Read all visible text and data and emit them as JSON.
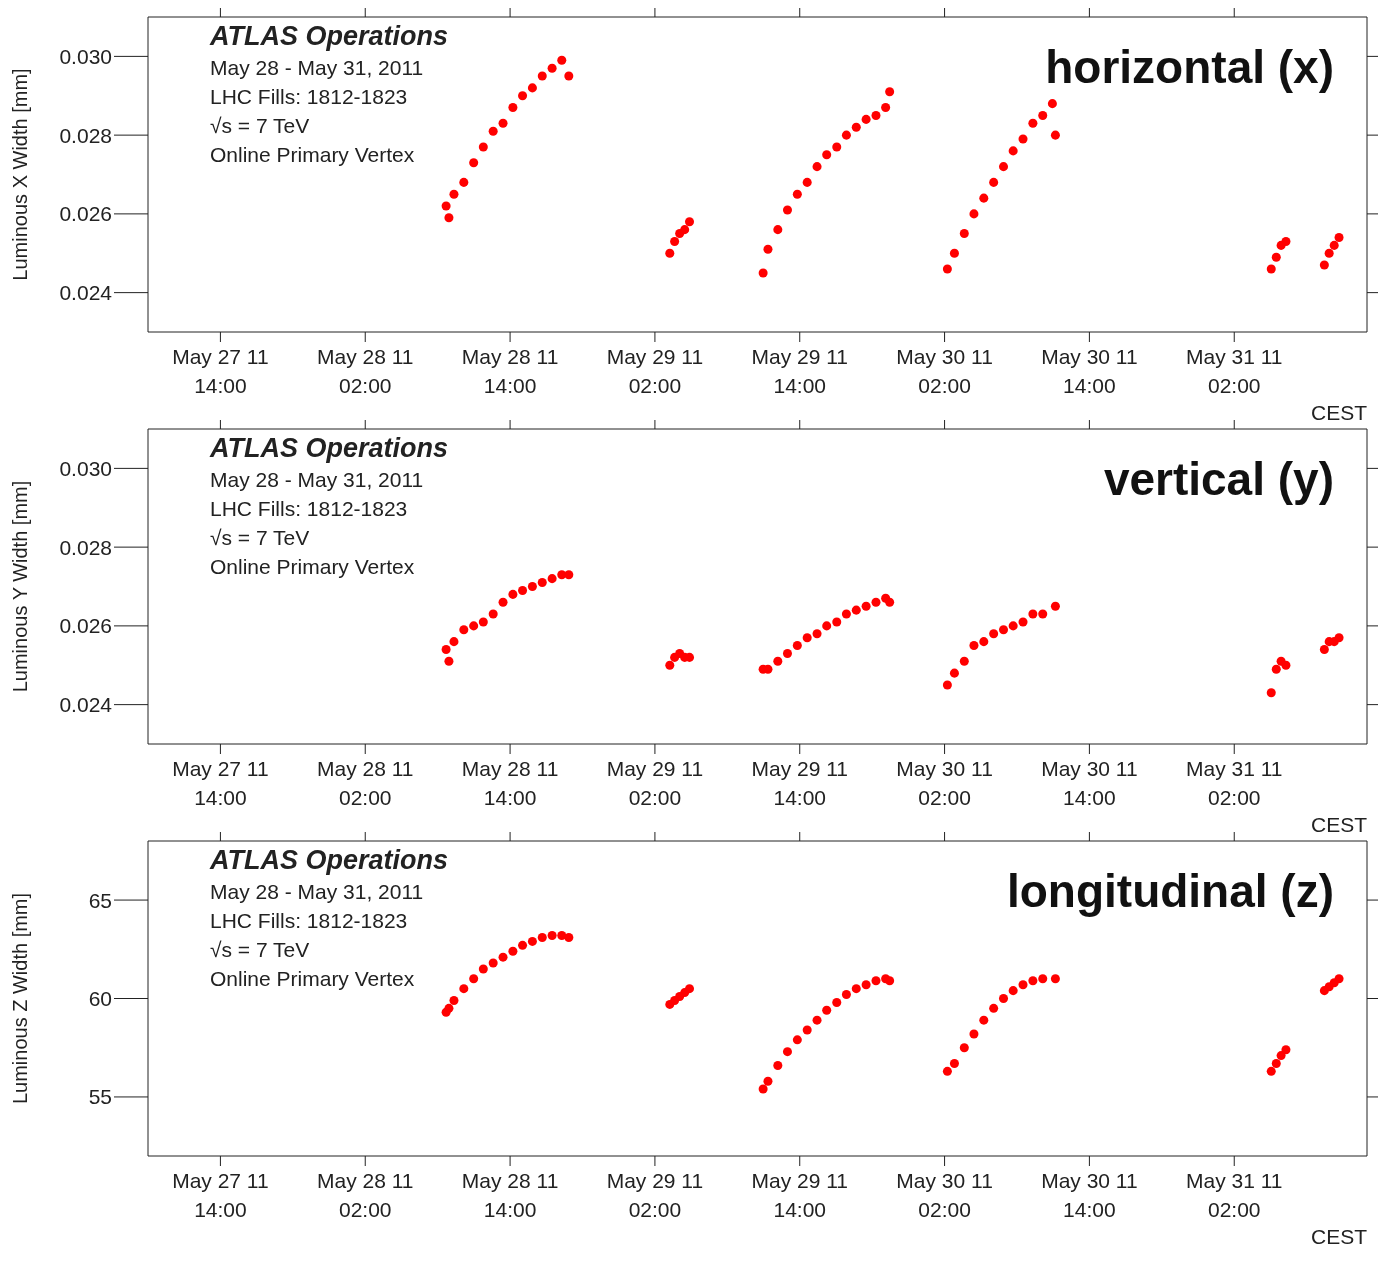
{
  "chart_data": [
    {
      "type": "scatter",
      "ylabel": "Luminous X Width [mm]",
      "xlabel": "CEST",
      "marker": "circle",
      "grid": false,
      "legend": false,
      "annotations": [
        "ATLAS Operations",
        "May 28 - May 31, 2011",
        "LHC Fills: 1812-1823",
        "√s = 7 TeV",
        "Online Primary Vertex",
        "horizontal (x)"
      ],
      "xlim": [
        "2011-05-27T08:00",
        "2011-05-31T13:00"
      ],
      "xticks": [
        {
          "value": "2011-05-27T14:00",
          "label": "May 27 11\n14:00"
        },
        {
          "value": "2011-05-28T02:00",
          "label": "May 28 11\n02:00"
        },
        {
          "value": "2011-05-28T14:00",
          "label": "May 28 11\n14:00"
        },
        {
          "value": "2011-05-29T02:00",
          "label": "May 29 11\n02:00"
        },
        {
          "value": "2011-05-29T14:00",
          "label": "May 29 11\n14:00"
        },
        {
          "value": "2011-05-30T02:00",
          "label": "May 30 11\n02:00"
        },
        {
          "value": "2011-05-30T14:00",
          "label": "May 30 11\n14:00"
        },
        {
          "value": "2011-05-31T02:00",
          "label": "May 31 11\n02:00"
        }
      ],
      "ylim": [
        0.023,
        0.031
      ],
      "yticks": [
        {
          "value": 0.024,
          "label": "0.024"
        },
        {
          "value": 0.026,
          "label": "0.026"
        },
        {
          "value": 0.028,
          "label": "0.028"
        },
        {
          "value": 0.03,
          "label": "0.030"
        }
      ],
      "x": [
        "2011-05-28T08:42",
        "2011-05-28T08:56",
        "2011-05-28T09:21",
        "2011-05-28T10:10",
        "2011-05-28T10:59",
        "2011-05-28T11:47",
        "2011-05-28T12:36",
        "2011-05-28T13:25",
        "2011-05-28T14:14",
        "2011-05-28T15:02",
        "2011-05-28T15:51",
        "2011-05-28T16:40",
        "2011-05-28T17:29",
        "2011-05-28T18:17",
        "2011-05-28T18:52",
        "2011-05-29T03:14",
        "2011-05-29T03:38",
        "2011-05-29T04:03",
        "2011-05-29T04:28",
        "2011-05-29T04:52",
        "2011-05-29T10:58",
        "2011-05-29T11:22",
        "2011-05-29T12:11",
        "2011-05-29T12:59",
        "2011-05-29T13:48",
        "2011-05-29T14:37",
        "2011-05-29T15:26",
        "2011-05-29T16:14",
        "2011-05-29T17:04",
        "2011-05-29T17:52",
        "2011-05-29T18:41",
        "2011-05-29T19:30",
        "2011-05-29T20:19",
        "2011-05-29T21:07",
        "2011-05-29T21:27",
        "2011-05-30T02:14",
        "2011-05-30T02:49",
        "2011-05-30T03:38",
        "2011-05-30T04:26",
        "2011-05-30T05:15",
        "2011-05-30T06:04",
        "2011-05-30T06:53",
        "2011-05-30T07:41",
        "2011-05-30T08:30",
        "2011-05-30T09:19",
        "2011-05-30T10:08",
        "2011-05-30T10:56",
        "2011-05-30T11:11",
        "2011-05-31T05:04",
        "2011-05-31T05:29",
        "2011-05-31T05:53",
        "2011-05-31T06:17",
        "2011-05-31T09:28",
        "2011-05-31T09:52",
        "2011-05-31T10:17",
        "2011-05-31T10:41"
      ],
      "series": [
        {
          "color": "#ff0000",
          "values": [
            0.0262,
            0.0259,
            0.0265,
            0.0268,
            0.0273,
            0.0277,
            0.0281,
            0.0283,
            0.0287,
            0.029,
            0.0292,
            0.0295,
            0.0297,
            0.0299,
            0.0295,
            0.025,
            0.0253,
            0.0255,
            0.0256,
            0.0258,
            0.0245,
            0.0251,
            0.0256,
            0.0261,
            0.0265,
            0.0268,
            0.0272,
            0.0275,
            0.0277,
            0.028,
            0.0282,
            0.0284,
            0.0285,
            0.0287,
            0.0291,
            0.0246,
            0.025,
            0.0255,
            0.026,
            0.0264,
            0.0268,
            0.0272,
            0.0276,
            0.0279,
            0.0283,
            0.0285,
            0.0288,
            0.028,
            0.0246,
            0.0249,
            0.0252,
            0.0253,
            0.0247,
            0.025,
            0.0252,
            0.0254
          ]
        }
      ]
    },
    {
      "type": "scatter",
      "ylabel": "Luminous Y Width [mm]",
      "xlabel": "CEST",
      "marker": "circle",
      "grid": false,
      "legend": false,
      "annotations": [
        "ATLAS Operations",
        "May 28 - May 31, 2011",
        "LHC Fills: 1812-1823",
        "√s = 7 TeV",
        "Online Primary Vertex",
        "vertical (y)"
      ],
      "xlim": [
        "2011-05-27T08:00",
        "2011-05-31T13:00"
      ],
      "xticks": [
        {
          "value": "2011-05-27T14:00",
          "label": "May 27 11\n14:00"
        },
        {
          "value": "2011-05-28T02:00",
          "label": "May 28 11\n02:00"
        },
        {
          "value": "2011-05-28T14:00",
          "label": "May 28 11\n14:00"
        },
        {
          "value": "2011-05-29T02:00",
          "label": "May 29 11\n02:00"
        },
        {
          "value": "2011-05-29T14:00",
          "label": "May 29 11\n14:00"
        },
        {
          "value": "2011-05-30T02:00",
          "label": "May 30 11\n02:00"
        },
        {
          "value": "2011-05-30T14:00",
          "label": "May 30 11\n14:00"
        },
        {
          "value": "2011-05-31T02:00",
          "label": "May 31 11\n02:00"
        }
      ],
      "ylim": [
        0.023,
        0.031
      ],
      "yticks": [
        {
          "value": 0.024,
          "label": "0.024"
        },
        {
          "value": 0.026,
          "label": "0.026"
        },
        {
          "value": 0.028,
          "label": "0.028"
        },
        {
          "value": 0.03,
          "label": "0.030"
        }
      ],
      "x": [
        "2011-05-28T08:42",
        "2011-05-28T08:56",
        "2011-05-28T09:21",
        "2011-05-28T10:10",
        "2011-05-28T10:59",
        "2011-05-28T11:47",
        "2011-05-28T12:36",
        "2011-05-28T13:25",
        "2011-05-28T14:14",
        "2011-05-28T15:02",
        "2011-05-28T15:51",
        "2011-05-28T16:40",
        "2011-05-28T17:29",
        "2011-05-28T18:17",
        "2011-05-28T18:52",
        "2011-05-29T03:14",
        "2011-05-29T03:38",
        "2011-05-29T04:03",
        "2011-05-29T04:28",
        "2011-05-29T04:52",
        "2011-05-29T10:58",
        "2011-05-29T11:22",
        "2011-05-29T12:11",
        "2011-05-29T12:59",
        "2011-05-29T13:48",
        "2011-05-29T14:37",
        "2011-05-29T15:26",
        "2011-05-29T16:14",
        "2011-05-29T17:04",
        "2011-05-29T17:52",
        "2011-05-29T18:41",
        "2011-05-29T19:30",
        "2011-05-29T20:19",
        "2011-05-29T21:07",
        "2011-05-29T21:27",
        "2011-05-30T02:14",
        "2011-05-30T02:49",
        "2011-05-30T03:38",
        "2011-05-30T04:26",
        "2011-05-30T05:15",
        "2011-05-30T06:04",
        "2011-05-30T06:53",
        "2011-05-30T07:41",
        "2011-05-30T08:30",
        "2011-05-30T09:19",
        "2011-05-30T10:08",
        "2011-05-30T10:56",
        "2011-05-30T11:11",
        "2011-05-31T05:04",
        "2011-05-31T05:29",
        "2011-05-31T05:53",
        "2011-05-31T06:17",
        "2011-05-31T09:28",
        "2011-05-31T09:52",
        "2011-05-31T10:17",
        "2011-05-31T10:41"
      ],
      "series": [
        {
          "color": "#ff0000",
          "values": [
            0.0254,
            0.0251,
            0.0256,
            0.0259,
            0.026,
            0.0261,
            0.0263,
            0.0266,
            0.0268,
            0.0269,
            0.027,
            0.0271,
            0.0272,
            0.0273,
            0.0273,
            0.025,
            0.0252,
            0.0253,
            0.0252,
            0.0252,
            0.0249,
            0.0249,
            0.0251,
            0.0253,
            0.0255,
            0.0257,
            0.0258,
            0.026,
            0.0261,
            0.0263,
            0.0264,
            0.0265,
            0.0266,
            0.0267,
            0.0266,
            0.0245,
            0.0248,
            0.0251,
            0.0255,
            0.0256,
            0.0258,
            0.0259,
            0.026,
            0.0261,
            0.0263,
            0.0263,
            null,
            0.0265,
            0.0243,
            0.0249,
            0.0251,
            0.025,
            0.0254,
            0.0256,
            0.0256,
            0.0257
          ]
        }
      ]
    },
    {
      "type": "scatter",
      "ylabel": "Luminous Z Width [mm]",
      "xlabel": "CEST",
      "marker": "circle",
      "grid": false,
      "legend": false,
      "annotations": [
        "ATLAS Operations",
        "May 28 - May 31, 2011",
        "LHC Fills: 1812-1823",
        "√s = 7 TeV",
        "Online Primary Vertex",
        "longitudinal (z)"
      ],
      "xlim": [
        "2011-05-27T08:00",
        "2011-05-31T13:00"
      ],
      "xticks": [
        {
          "value": "2011-05-27T14:00",
          "label": "May 27 11\n14:00"
        },
        {
          "value": "2011-05-28T02:00",
          "label": "May 28 11\n02:00"
        },
        {
          "value": "2011-05-28T14:00",
          "label": "May 28 11\n14:00"
        },
        {
          "value": "2011-05-29T02:00",
          "label": "May 29 11\n02:00"
        },
        {
          "value": "2011-05-29T14:00",
          "label": "May 29 11\n14:00"
        },
        {
          "value": "2011-05-30T02:00",
          "label": "May 30 11\n02:00"
        },
        {
          "value": "2011-05-30T14:00",
          "label": "May 30 11\n14:00"
        },
        {
          "value": "2011-05-31T02:00",
          "label": "May 31 11\n02:00"
        }
      ],
      "ylim": [
        52,
        68
      ],
      "yticks": [
        55,
        60,
        65
      ],
      "x": [
        "2011-05-28T08:42",
        "2011-05-28T08:56",
        "2011-05-28T09:21",
        "2011-05-28T10:10",
        "2011-05-28T10:59",
        "2011-05-28T11:47",
        "2011-05-28T12:36",
        "2011-05-28T13:25",
        "2011-05-28T14:14",
        "2011-05-28T15:02",
        "2011-05-28T15:51",
        "2011-05-28T16:40",
        "2011-05-28T17:29",
        "2011-05-28T18:17",
        "2011-05-28T18:52",
        "2011-05-29T03:14",
        "2011-05-29T03:38",
        "2011-05-29T04:03",
        "2011-05-29T04:28",
        "2011-05-29T04:52",
        "2011-05-29T10:58",
        "2011-05-29T11:22",
        "2011-05-29T12:11",
        "2011-05-29T12:59",
        "2011-05-29T13:48",
        "2011-05-29T14:37",
        "2011-05-29T15:26",
        "2011-05-29T16:14",
        "2011-05-29T17:04",
        "2011-05-29T17:52",
        "2011-05-29T18:41",
        "2011-05-29T19:30",
        "2011-05-29T20:19",
        "2011-05-29T21:07",
        "2011-05-29T21:27",
        "2011-05-30T02:14",
        "2011-05-30T02:49",
        "2011-05-30T03:38",
        "2011-05-30T04:26",
        "2011-05-30T05:15",
        "2011-05-30T06:04",
        "2011-05-30T06:53",
        "2011-05-30T07:41",
        "2011-05-30T08:30",
        "2011-05-30T09:19",
        "2011-05-30T10:08",
        "2011-05-30T10:56",
        "2011-05-30T11:11",
        "2011-05-31T05:04",
        "2011-05-31T05:29",
        "2011-05-31T05:53",
        "2011-05-31T06:17",
        "2011-05-31T09:28",
        "2011-05-31T09:52",
        "2011-05-31T10:17",
        "2011-05-31T10:41"
      ],
      "series": [
        {
          "color": "#ff0000",
          "values": [
            59.3,
            59.5,
            59.9,
            60.5,
            61.0,
            61.5,
            61.8,
            62.1,
            62.4,
            62.7,
            62.9,
            63.1,
            63.2,
            63.2,
            63.1,
            59.7,
            59.9,
            60.1,
            60.3,
            60.5,
            55.4,
            55.8,
            56.6,
            57.3,
            57.9,
            58.4,
            58.9,
            59.4,
            59.8,
            60.2,
            60.5,
            60.7,
            60.9,
            61.0,
            60.9,
            56.3,
            56.7,
            57.5,
            58.2,
            58.9,
            59.5,
            60.0,
            60.4,
            60.7,
            60.9,
            61.0,
            null,
            61.0,
            56.3,
            56.7,
            57.1,
            57.4,
            60.4,
            60.6,
            60.8,
            61.0
          ]
        }
      ]
    }
  ]
}
